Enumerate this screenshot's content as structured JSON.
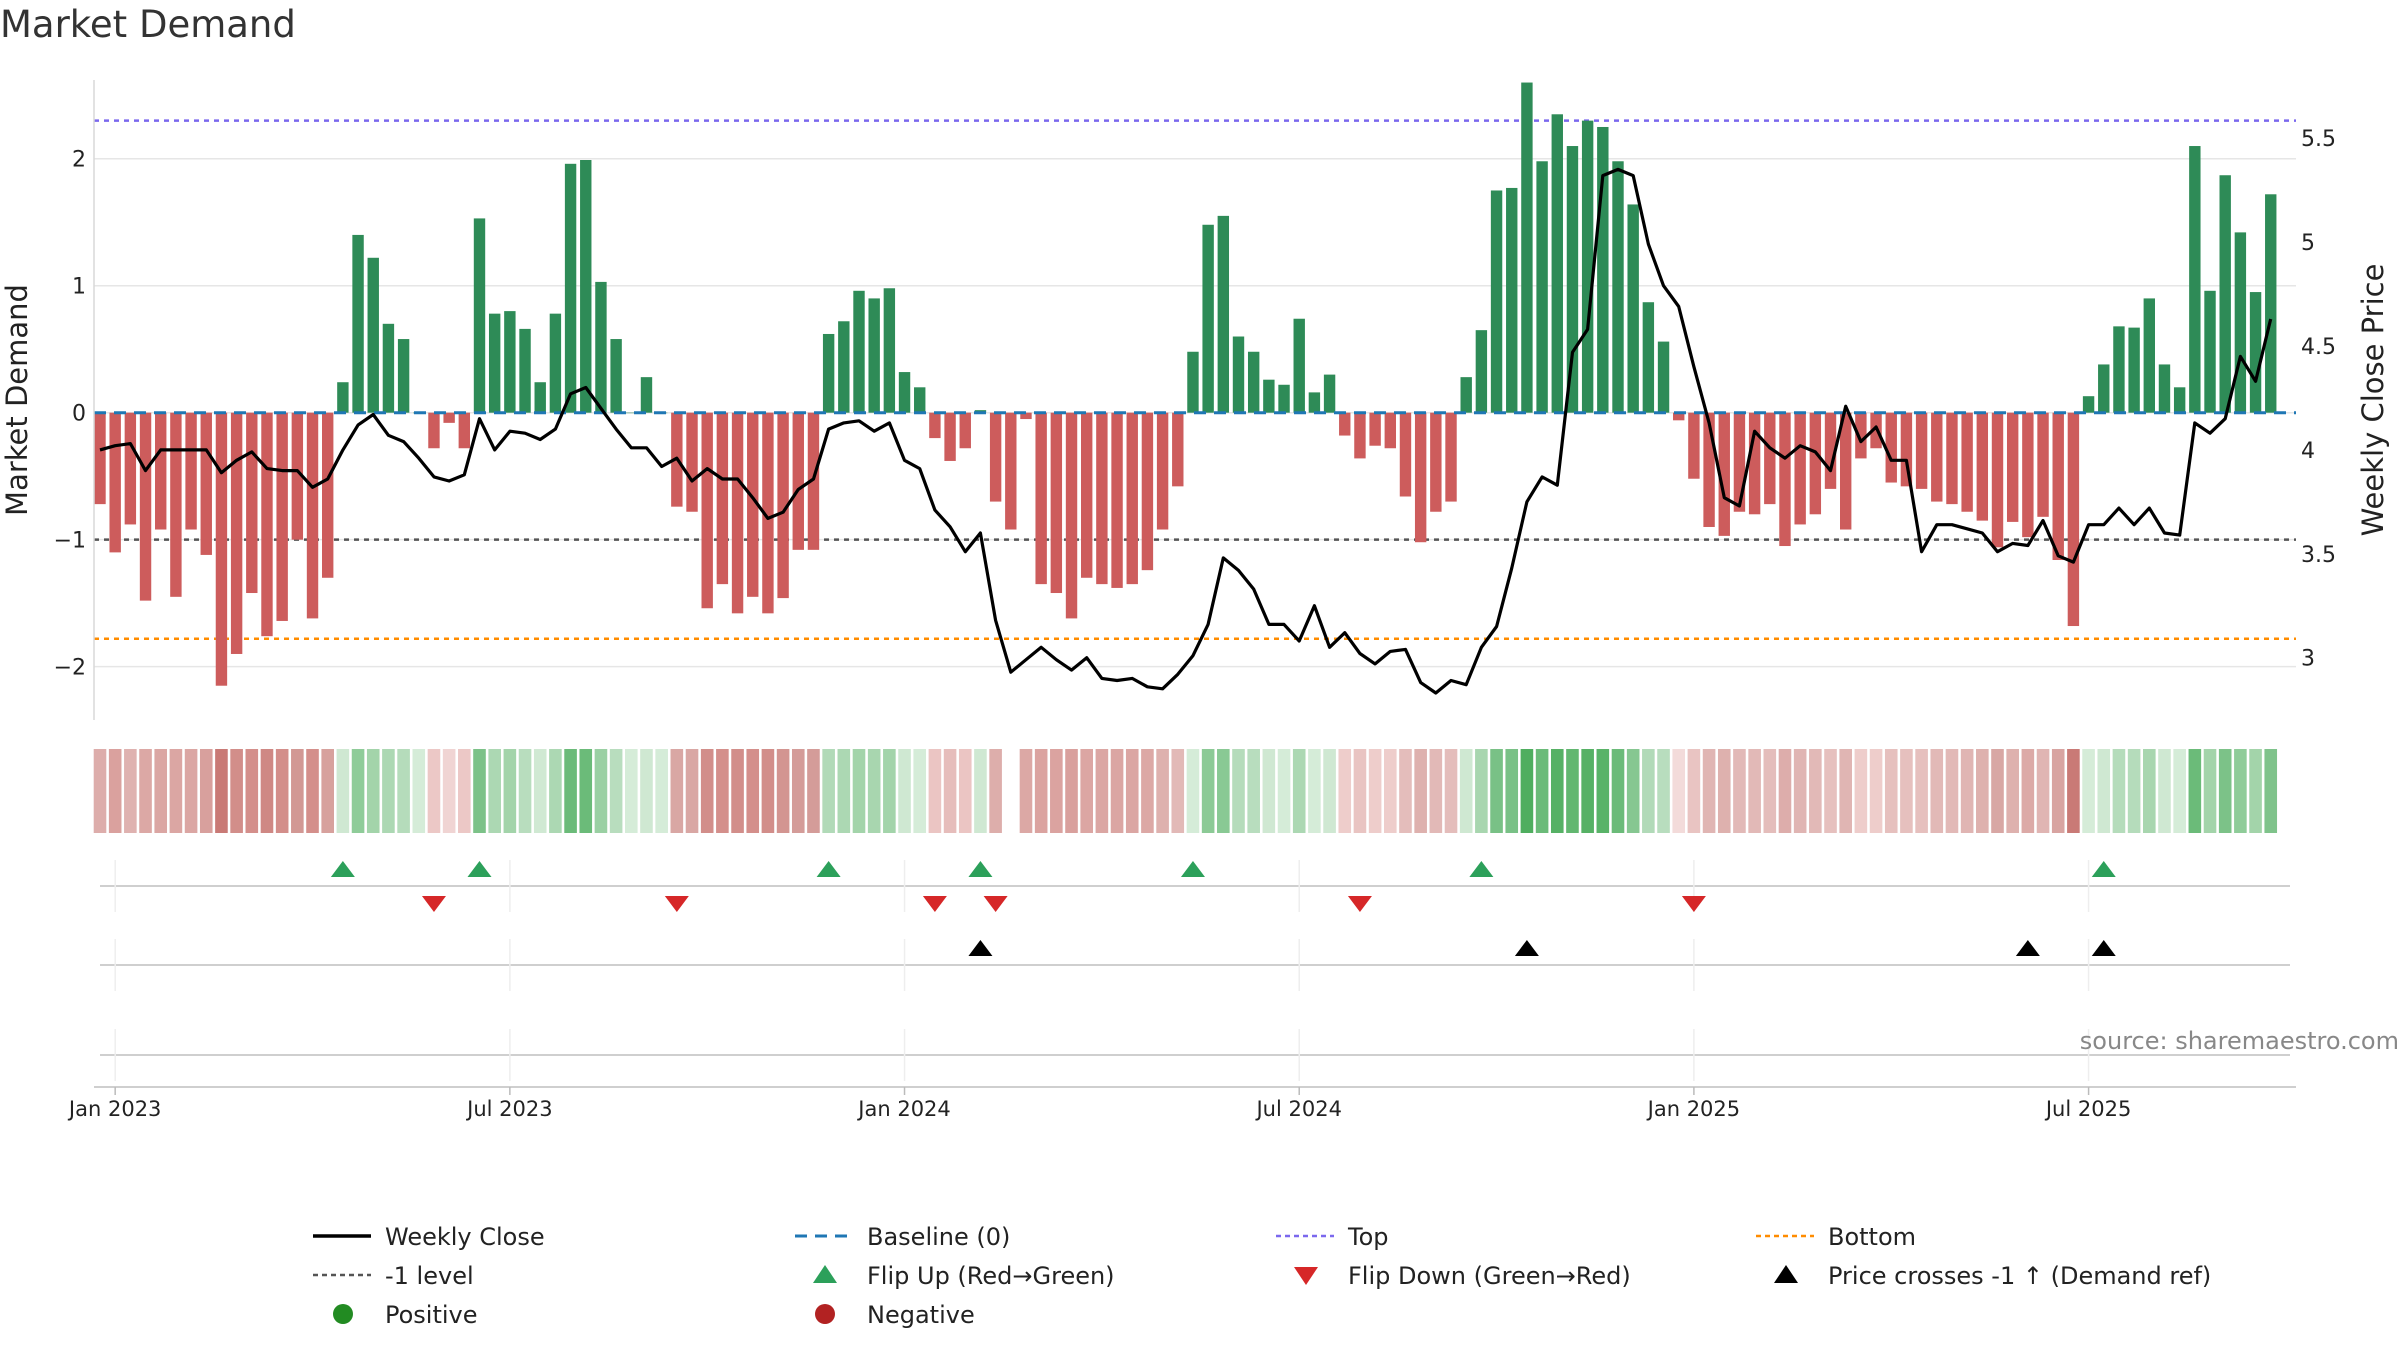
{
  "chart_data": {
    "type": "bar",
    "title": "Market Demand",
    "ylabel_left": "Market Demand",
    "ylabel_right": "Weekly Close Price",
    "source": "source: sharemaestro.com",
    "ylim_left": [
      -2.42,
      2.62
    ],
    "ylim_right": [
      2.7,
      5.78
    ],
    "yticks_left": [
      {
        "value": 2,
        "label": "2"
      },
      {
        "value": 1,
        "label": "1"
      },
      {
        "value": 0,
        "label": "0"
      },
      {
        "value": -1,
        "label": "−1"
      },
      {
        "value": -2,
        "label": "−2"
      }
    ],
    "yticks_right": [
      {
        "value": 5.5,
        "label": "5.5"
      },
      {
        "value": 5,
        "label": "5"
      },
      {
        "value": 4.5,
        "label": "4.5"
      },
      {
        "value": 4,
        "label": "4"
      },
      {
        "value": 3.5,
        "label": "3.5"
      },
      {
        "value": 3,
        "label": "3"
      }
    ],
    "x_start": "2022-12-26",
    "x_end": "2025-08-25",
    "xticks": [
      {
        "index": 1,
        "label": "Jan 2023"
      },
      {
        "index": 27,
        "label": "Jul 2023"
      },
      {
        "index": 53,
        "label": "Jan 2024"
      },
      {
        "index": 79,
        "label": "Jul 2024"
      },
      {
        "index": 105,
        "label": "Jan 2025"
      },
      {
        "index": 131,
        "label": "Jul 2025"
      }
    ],
    "reference_lines": {
      "top": 2.3,
      "bottom": -1.78,
      "minus_one": -1,
      "baseline": 0
    },
    "demand": [
      -0.72,
      -1.1,
      -0.88,
      -1.48,
      -0.92,
      -1.45,
      -0.92,
      -1.12,
      -2.15,
      -1.9,
      -1.42,
      -1.76,
      -1.64,
      -1.0,
      -1.62,
      -1.3,
      0.24,
      1.4,
      1.22,
      0.7,
      0.58,
      0.0,
      -0.28,
      -0.08,
      -0.28,
      1.53,
      0.78,
      0.8,
      0.66,
      0.24,
      0.78,
      1.96,
      1.99,
      1.03,
      0.58,
      0.0,
      0.28,
      0.0,
      -0.74,
      -0.78,
      -1.54,
      -1.35,
      -1.58,
      -1.45,
      -1.58,
      -1.46,
      -1.08,
      -1.08,
      0.62,
      0.72,
      0.96,
      0.9,
      0.98,
      0.32,
      0.2,
      -0.2,
      -0.38,
      -0.28,
      0.02,
      -0.7,
      -0.92,
      -0.05,
      -1.35,
      -1.42,
      -1.62,
      -1.3,
      -1.35,
      -1.38,
      -1.35,
      -1.24,
      -0.92,
      -0.58,
      0.48,
      1.48,
      1.55,
      0.6,
      0.48,
      0.26,
      0.22,
      0.74,
      0.16,
      0.3,
      -0.18,
      -0.36,
      -0.26,
      -0.28,
      -0.66,
      -1.02,
      -0.78,
      -0.7,
      0.28,
      0.65,
      1.75,
      1.77,
      2.6,
      1.98,
      2.35,
      2.1,
      2.3,
      2.25,
      1.98,
      1.64,
      0.87,
      0.56,
      -0.06,
      -0.52,
      -0.9,
      -0.97,
      -0.78,
      -0.8,
      -0.72,
      -1.05,
      -0.88,
      -0.8,
      -0.6,
      -0.92,
      -0.36,
      -0.28,
      -0.55,
      -0.58,
      -0.6,
      -0.7,
      -0.72,
      -0.78,
      -0.85,
      -1.06,
      -0.86,
      -0.98,
      -0.82,
      -1.16,
      -1.68,
      0.13,
      0.38,
      0.68,
      0.67,
      0.9,
      0.38,
      0.2,
      2.1,
      0.96,
      1.87,
      1.42,
      0.95,
      1.72
    ],
    "price": [
      4.0,
      4.02,
      4.03,
      3.9,
      4.0,
      4.0,
      4.0,
      4.0,
      3.89,
      3.95,
      3.99,
      3.91,
      3.9,
      3.9,
      3.82,
      3.86,
      4.0,
      4.12,
      4.17,
      4.07,
      4.04,
      3.96,
      3.87,
      3.85,
      3.88,
      4.15,
      4.0,
      4.09,
      4.08,
      4.05,
      4.1,
      4.27,
      4.3,
      4.2,
      4.1,
      4.01,
      4.01,
      3.92,
      3.96,
      3.85,
      3.91,
      3.86,
      3.86,
      3.77,
      3.67,
      3.7,
      3.81,
      3.86,
      4.1,
      4.13,
      4.14,
      4.09,
      4.13,
      3.95,
      3.91,
      3.71,
      3.63,
      3.51,
      3.6,
      3.18,
      2.93,
      2.99,
      3.05,
      2.99,
      2.94,
      3.0,
      2.9,
      2.89,
      2.9,
      2.86,
      2.85,
      2.92,
      3.01,
      3.16,
      3.48,
      3.42,
      3.33,
      3.16,
      3.16,
      3.08,
      3.25,
      3.05,
      3.12,
      3.02,
      2.97,
      3.03,
      3.04,
      2.88,
      2.83,
      2.89,
      2.87,
      3.05,
      3.15,
      3.43,
      3.75,
      3.87,
      3.83,
      4.47,
      4.58,
      5.32,
      5.35,
      5.32,
      4.99,
      4.79,
      4.69,
      4.4,
      4.13,
      3.77,
      3.73,
      4.09,
      4.01,
      3.96,
      4.02,
      3.99,
      3.9,
      4.21,
      4.04,
      4.11,
      3.95,
      3.95,
      3.51,
      3.64,
      3.64,
      3.62,
      3.6,
      3.51,
      3.55,
      3.54,
      3.66,
      3.49,
      3.46,
      3.64,
      3.64,
      3.72,
      3.64,
      3.72,
      3.6,
      3.59,
      4.13,
      4.08,
      4.15,
      4.45,
      4.33,
      4.63
    ],
    "strip_colors": [
      "#ddadab",
      "#daa19e",
      "#dfb2b0",
      "#dca8a5",
      "#dba6a3",
      "#dba6a3",
      "#dba6a3",
      "#d8a09d",
      "#c97a76",
      "#d28e8a",
      "#d48f8b",
      "#cf8884",
      "#d38e8a",
      "#d29894",
      "#d48f8b",
      "#d7a19d",
      "#cfe8d2",
      "#8fcc99",
      "#a3d4aa",
      "#acd8b3",
      "#b5dcbb",
      "#d5ecd8",
      "#ecc8c6",
      "#f0d4d3",
      "#ecc8c6",
      "#7cc288",
      "#acd8b3",
      "#a3d4aa",
      "#b8ddbe",
      "#d0e9d3",
      "#acd8b3",
      "#6bbb79",
      "#6bbb79",
      "#9ad0a3",
      "#b8ddbe",
      "#d5ecd8",
      "#cfe8d2",
      "#d5ecd8",
      "#d9a7a4",
      "#d9a7a4",
      "#d28e8a",
      "#d48f8b",
      "#d28e8a",
      "#d48f8b",
      "#d28e8a",
      "#d39591",
      "#d49c99",
      "#d49c99",
      "#b1dab8",
      "#acd8b3",
      "#a3d4aa",
      "#a8d6af",
      "#a3d4aa",
      "#cfe8d2",
      "#d5ecd8",
      "#ebc5c3",
      "#e6bdbb",
      "#ebc5c3",
      "#cfe8d2",
      "#ddaeab",
      "#ffffff",
      "#dca8a5",
      "#dba3a0",
      "#dba3a0",
      "#d9a09d",
      "#dca6a3",
      "#dba6a3",
      "#dba6a3",
      "#dba6a3",
      "#dca8a5",
      "#deb1ae",
      "#e2b9b7",
      "#d5ecd8",
      "#8cca96",
      "#89c994",
      "#b5dcbb",
      "#b8ddbe",
      "#cfe8d2",
      "#d5ecd8",
      "#acd8b3",
      "#d5ecd8",
      "#cfe8d2",
      "#eecdcb",
      "#e9c4c2",
      "#eecdcb",
      "#eecdcb",
      "#e4bdbb",
      "#deb1ae",
      "#e2b9b7",
      "#e4bdbb",
      "#cfe8d2",
      "#a8d6af",
      "#79c186",
      "#79c186",
      "#4fae5f",
      "#6bbb79",
      "#56b165",
      "#62b770",
      "#56b165",
      "#59b368",
      "#6bbb79",
      "#86c791",
      "#b1dab8",
      "#b8ddbe",
      "#f3dbda",
      "#e9c4c2",
      "#e0b5b3",
      "#deb1ae",
      "#e2b9b7",
      "#e2b9b7",
      "#e4bdbb",
      "#ddadab",
      "#e0b5b3",
      "#e2b9b7",
      "#e6c0be",
      "#e0b5b3",
      "#eecdcb",
      "#eecdcb",
      "#e6c0be",
      "#e6c0be",
      "#e6c0be",
      "#e2b9b7",
      "#e2b9b7",
      "#e0b5b3",
      "#deb1ae",
      "#d8a7a4",
      "#deb1ae",
      "#dcaaa7",
      "#e0b5b3",
      "#d8a4a1",
      "#c97a76",
      "#d5ecd8",
      "#cfe8d2",
      "#b5dcbb",
      "#b5dcbb",
      "#a8d6af",
      "#cfe8d2",
      "#d5ecd8",
      "#6bbb79",
      "#a3d4aa",
      "#7cc288",
      "#8fcc99",
      "#a3d4aa",
      "#7fc38b"
    ],
    "flip_up": [
      16,
      25,
      48,
      58,
      72,
      91,
      132
    ],
    "flip_down": [
      22,
      38,
      55,
      59,
      83,
      105
    ],
    "price_crosses": [
      58,
      94,
      127,
      132
    ],
    "legend": [
      {
        "key": "close",
        "label": "Weekly Close",
        "color": "#000000"
      },
      {
        "key": "baseline",
        "label": "Baseline (0)",
        "color": "#1f77b4"
      },
      {
        "key": "top",
        "label": "Top",
        "color": "#7b68ee"
      },
      {
        "key": "bottom",
        "label": "Bottom",
        "color": "#ff8c00"
      },
      {
        "key": "minus1",
        "label": "-1 level",
        "color": "#555555"
      },
      {
        "key": "flipup",
        "label": "Flip Up (Red→Green)",
        "color": "#2ca05a"
      },
      {
        "key": "flipdown",
        "label": "Flip Down (Green→Red)",
        "color": "#d62728"
      },
      {
        "key": "cross",
        "label": "Price crosses -1 ↑ (Demand ref)",
        "color": "#000000"
      },
      {
        "key": "positive",
        "label": "Positive",
        "color": "#228b22"
      },
      {
        "key": "negative",
        "label": "Negative",
        "color": "#b22222"
      }
    ],
    "colors": {
      "positive_bar": "#2e8b57",
      "negative_bar": "#cd5c5c",
      "grid": "#e6e6e6"
    }
  }
}
